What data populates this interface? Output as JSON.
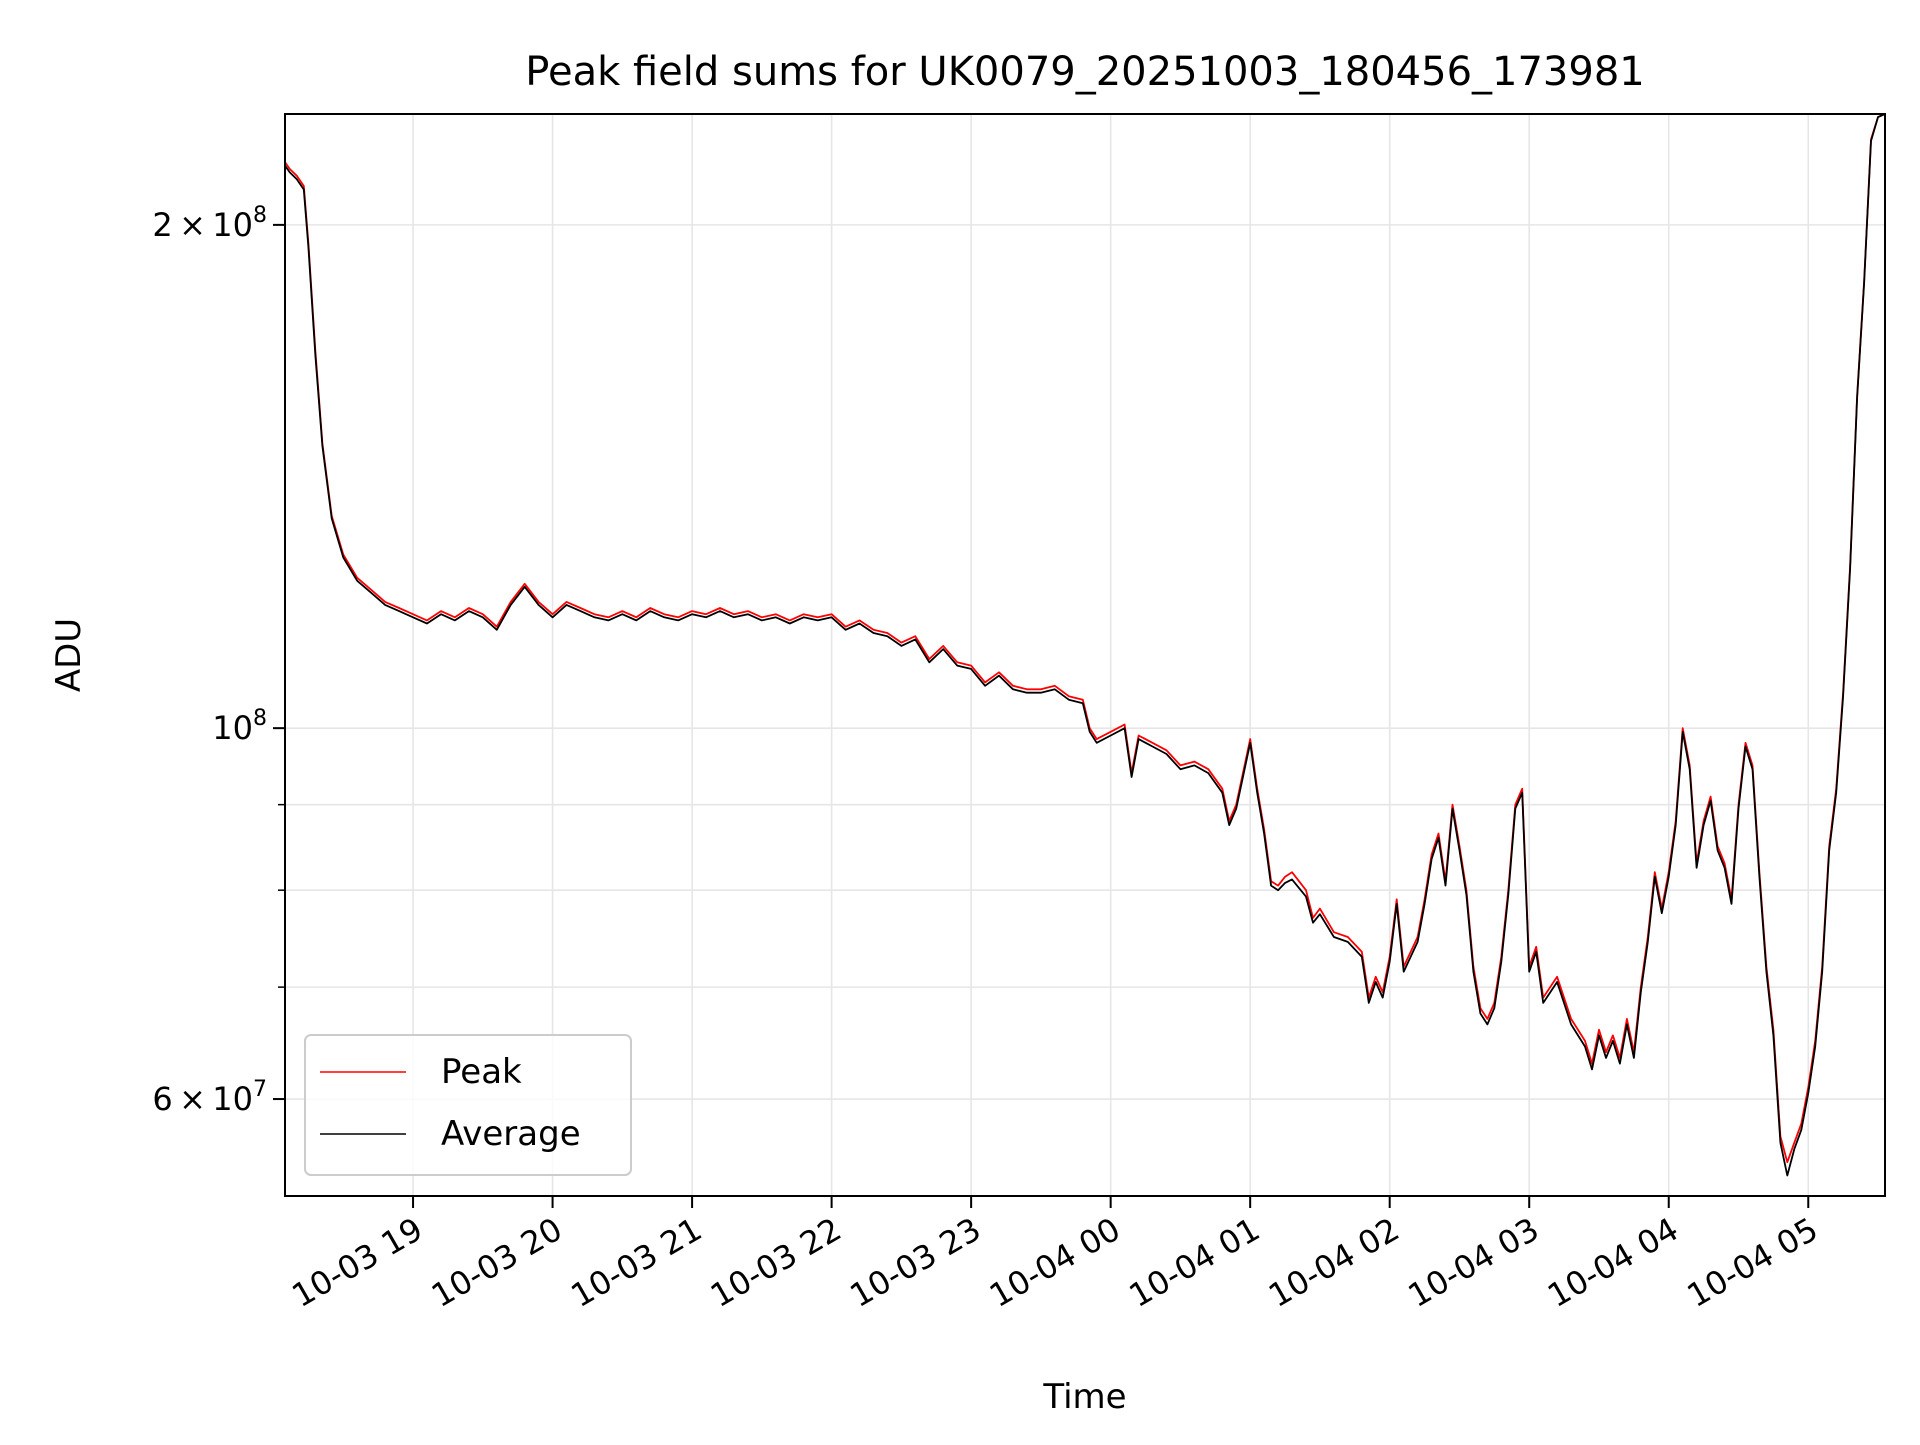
{
  "chart_data": {
    "type": "line",
    "title": "Peak field sums for UK0079_20251003_180456_173981",
    "xlabel": "Time",
    "ylabel": "ADU",
    "y_scale": "log",
    "ylim": [
      52500000,
      233000000
    ],
    "xlim": [
      "2025-10-03 18:04:56",
      "2025-10-04 05:33:00"
    ],
    "grid": true,
    "legend_position": "lower-left",
    "x_ticks": [
      {
        "t": "2025-10-03 19:00",
        "label": "10-03 19"
      },
      {
        "t": "2025-10-03 20:00",
        "label": "10-03 20"
      },
      {
        "t": "2025-10-03 21:00",
        "label": "10-03 21"
      },
      {
        "t": "2025-10-03 22:00",
        "label": "10-03 22"
      },
      {
        "t": "2025-10-03 23:00",
        "label": "10-03 23"
      },
      {
        "t": "2025-10-04 00:00",
        "label": "10-04 00"
      },
      {
        "t": "2025-10-04 01:00",
        "label": "10-04 01"
      },
      {
        "t": "2025-10-04 02:00",
        "label": "10-04 02"
      },
      {
        "t": "2025-10-04 03:00",
        "label": "10-04 03"
      },
      {
        "t": "2025-10-04 04:00",
        "label": "10-04 04"
      },
      {
        "t": "2025-10-04 05:00",
        "label": "10-04 05"
      }
    ],
    "y_ticks_major": [
      {
        "value": 200000000,
        "mantissa": "2",
        "exponent": "8"
      },
      {
        "value": 100000000,
        "mantissa": "",
        "exponent": "8"
      },
      {
        "value": 60000000,
        "mantissa": "6",
        "exponent": "7"
      }
    ],
    "y_ticks_minor": [
      70000000,
      80000000,
      90000000
    ],
    "series": [
      {
        "name": "Peak",
        "color": "#ff0000",
        "x": [
          "2025-10-03 18:04:56",
          "2025-10-03 18:07",
          "2025-10-03 18:10",
          "2025-10-03 18:13",
          "2025-10-03 18:15",
          "2025-10-03 18:18",
          "2025-10-03 18:21",
          "2025-10-03 18:25",
          "2025-10-03 18:30",
          "2025-10-03 18:36",
          "2025-10-03 18:42",
          "2025-10-03 18:48",
          "2025-10-03 18:54",
          "2025-10-03 19:00",
          "2025-10-03 19:06",
          "2025-10-03 19:12",
          "2025-10-03 19:18",
          "2025-10-03 19:24",
          "2025-10-03 19:30",
          "2025-10-03 19:36",
          "2025-10-03 19:42",
          "2025-10-03 19:48",
          "2025-10-03 19:54",
          "2025-10-03 20:00",
          "2025-10-03 20:06",
          "2025-10-03 20:12",
          "2025-10-03 20:18",
          "2025-10-03 20:24",
          "2025-10-03 20:30",
          "2025-10-03 20:36",
          "2025-10-03 20:42",
          "2025-10-03 20:48",
          "2025-10-03 20:54",
          "2025-10-03 21:00",
          "2025-10-03 21:06",
          "2025-10-03 21:12",
          "2025-10-03 21:18",
          "2025-10-03 21:24",
          "2025-10-03 21:30",
          "2025-10-03 21:36",
          "2025-10-03 21:42",
          "2025-10-03 21:48",
          "2025-10-03 21:54",
          "2025-10-03 22:00",
          "2025-10-03 22:06",
          "2025-10-03 22:12",
          "2025-10-03 22:18",
          "2025-10-03 22:24",
          "2025-10-03 22:30",
          "2025-10-03 22:36",
          "2025-10-03 22:42",
          "2025-10-03 22:48",
          "2025-10-03 22:54",
          "2025-10-03 23:00",
          "2025-10-03 23:06",
          "2025-10-03 23:12",
          "2025-10-03 23:18",
          "2025-10-03 23:24",
          "2025-10-03 23:30",
          "2025-10-03 23:36",
          "2025-10-03 23:42",
          "2025-10-03 23:48",
          "2025-10-03 23:51",
          "2025-10-03 23:54",
          "2025-10-04 00:00",
          "2025-10-04 00:06",
          "2025-10-04 00:09",
          "2025-10-04 00:12",
          "2025-10-04 00:18",
          "2025-10-04 00:24",
          "2025-10-04 00:30",
          "2025-10-04 00:36",
          "2025-10-04 00:42",
          "2025-10-04 00:48",
          "2025-10-04 00:51",
          "2025-10-04 00:54",
          "2025-10-04 01:00",
          "2025-10-04 01:03",
          "2025-10-04 01:06",
          "2025-10-04 01:09",
          "2025-10-04 01:12",
          "2025-10-04 01:15",
          "2025-10-04 01:18",
          "2025-10-04 01:24",
          "2025-10-04 01:27",
          "2025-10-04 01:30",
          "2025-10-04 01:36",
          "2025-10-04 01:42",
          "2025-10-04 01:48",
          "2025-10-04 01:51",
          "2025-10-04 01:54",
          "2025-10-04 01:57",
          "2025-10-04 02:00",
          "2025-10-04 02:03",
          "2025-10-04 02:06",
          "2025-10-04 02:12",
          "2025-10-04 02:15",
          "2025-10-04 02:18",
          "2025-10-04 02:21",
          "2025-10-04 02:24",
          "2025-10-04 02:27",
          "2025-10-04 02:30",
          "2025-10-04 02:33",
          "2025-10-04 02:36",
          "2025-10-04 02:39",
          "2025-10-04 02:42",
          "2025-10-04 02:45",
          "2025-10-04 02:48",
          "2025-10-04 02:51",
          "2025-10-04 02:54",
          "2025-10-04 02:57",
          "2025-10-04 03:00",
          "2025-10-04 03:03",
          "2025-10-04 03:06",
          "2025-10-04 03:12",
          "2025-10-04 03:18",
          "2025-10-04 03:24",
          "2025-10-04 03:27",
          "2025-10-04 03:30",
          "2025-10-04 03:33",
          "2025-10-04 03:36",
          "2025-10-04 03:39",
          "2025-10-04 03:42",
          "2025-10-04 03:45",
          "2025-10-04 03:48",
          "2025-10-04 03:51",
          "2025-10-04 03:54",
          "2025-10-04 03:57",
          "2025-10-04 04:00",
          "2025-10-04 04:03",
          "2025-10-04 04:06",
          "2025-10-04 04:09",
          "2025-10-04 04:12",
          "2025-10-04 04:15",
          "2025-10-04 04:18",
          "2025-10-04 04:21",
          "2025-10-04 04:24",
          "2025-10-04 04:27",
          "2025-10-04 04:30",
          "2025-10-04 04:33",
          "2025-10-04 04:36",
          "2025-10-04 04:39",
          "2025-10-04 04:42",
          "2025-10-04 04:45",
          "2025-10-04 04:48",
          "2025-10-04 04:51",
          "2025-10-04 04:54",
          "2025-10-04 04:57",
          "2025-10-04 05:00",
          "2025-10-04 05:03",
          "2025-10-04 05:06",
          "2025-10-04 05:09",
          "2025-10-04 05:12",
          "2025-10-04 05:15",
          "2025-10-04 05:18",
          "2025-10-04 05:21",
          "2025-10-04 05:24",
          "2025-10-04 05:27",
          "2025-10-04 05:30",
          "2025-10-04 05:33"
        ],
        "values": [
          218000000,
          216000000,
          214000000,
          211000000,
          195000000,
          168000000,
          148000000,
          134000000,
          127000000,
          123000000,
          121000000,
          119000000,
          118000000,
          117000000,
          116000000,
          117500000,
          116500000,
          118000000,
          117000000,
          115000000,
          119000000,
          122000000,
          119000000,
          117000000,
          119000000,
          118000000,
          117000000,
          116500000,
          117500000,
          116500000,
          118000000,
          117000000,
          116500000,
          117500000,
          117000000,
          118000000,
          117000000,
          117500000,
          116500000,
          117000000,
          116000000,
          117000000,
          116500000,
          117000000,
          115000000,
          116000000,
          114500000,
          114000000,
          112500000,
          113500000,
          110000000,
          112000000,
          109500000,
          109000000,
          106500000,
          108000000,
          106000000,
          105500000,
          105500000,
          106000000,
          104500000,
          104000000,
          100000000,
          98500000,
          99500000,
          100500000,
          94000000,
          99000000,
          98000000,
          97000000,
          95000000,
          95500000,
          94500000,
          92000000,
          88000000,
          90000000,
          98500000,
          92000000,
          87000000,
          81000000,
          80500000,
          81500000,
          82000000,
          80000000,
          77000000,
          78000000,
          75500000,
          75000000,
          73500000,
          69000000,
          71000000,
          69500000,
          73000000,
          79000000,
          72000000,
          75000000,
          79000000,
          84000000,
          86500000,
          81000000,
          90000000,
          85000000,
          80000000,
          72000000,
          68000000,
          67000000,
          68500000,
          73000000,
          80000000,
          90000000,
          92000000,
          72000000,
          74000000,
          69000000,
          71000000,
          67000000,
          65000000,
          63000000,
          66000000,
          64000000,
          65500000,
          63500000,
          67000000,
          64000000,
          70000000,
          75000000,
          82000000,
          78000000,
          82000000,
          88000000,
          100000000,
          95000000,
          83000000,
          88000000,
          91000000,
          85000000,
          83000000,
          79000000,
          90000000,
          98000000,
          95000000,
          82000000,
          72000000,
          66000000,
          57000000,
          55000000,
          56500000,
          58000000,
          61000000,
          65000000,
          72000000,
          85000000,
          92000000,
          105000000,
          125000000,
          158000000,
          185000000,
          225000000,
          232000000,
          233000000
        ]
      },
      {
        "name": "Average",
        "color": "#000000",
        "x": [
          "2025-10-03 18:04:56",
          "2025-10-03 18:07",
          "2025-10-03 18:10",
          "2025-10-03 18:13",
          "2025-10-03 18:15",
          "2025-10-03 18:18",
          "2025-10-03 18:21",
          "2025-10-03 18:25",
          "2025-10-03 18:30",
          "2025-10-03 18:36",
          "2025-10-03 18:42",
          "2025-10-03 18:48",
          "2025-10-03 18:54",
          "2025-10-03 19:00",
          "2025-10-03 19:06",
          "2025-10-03 19:12",
          "2025-10-03 19:18",
          "2025-10-03 19:24",
          "2025-10-03 19:30",
          "2025-10-03 19:36",
          "2025-10-03 19:42",
          "2025-10-03 19:48",
          "2025-10-03 19:54",
          "2025-10-03 20:00",
          "2025-10-03 20:06",
          "2025-10-03 20:12",
          "2025-10-03 20:18",
          "2025-10-03 20:24",
          "2025-10-03 20:30",
          "2025-10-03 20:36",
          "2025-10-03 20:42",
          "2025-10-03 20:48",
          "2025-10-03 20:54",
          "2025-10-03 21:00",
          "2025-10-03 21:06",
          "2025-10-03 21:12",
          "2025-10-03 21:18",
          "2025-10-03 21:24",
          "2025-10-03 21:30",
          "2025-10-03 21:36",
          "2025-10-03 21:42",
          "2025-10-03 21:48",
          "2025-10-03 21:54",
          "2025-10-03 22:00",
          "2025-10-03 22:06",
          "2025-10-03 22:12",
          "2025-10-03 22:18",
          "2025-10-03 22:24",
          "2025-10-03 22:30",
          "2025-10-03 22:36",
          "2025-10-03 22:42",
          "2025-10-03 22:48",
          "2025-10-03 22:54",
          "2025-10-03 23:00",
          "2025-10-03 23:06",
          "2025-10-03 23:12",
          "2025-10-03 23:18",
          "2025-10-03 23:24",
          "2025-10-03 23:30",
          "2025-10-03 23:36",
          "2025-10-03 23:42",
          "2025-10-03 23:48",
          "2025-10-03 23:51",
          "2025-10-03 23:54",
          "2025-10-04 00:00",
          "2025-10-04 00:06",
          "2025-10-04 00:09",
          "2025-10-04 00:12",
          "2025-10-04 00:18",
          "2025-10-04 00:24",
          "2025-10-04 00:30",
          "2025-10-04 00:36",
          "2025-10-04 00:42",
          "2025-10-04 00:48",
          "2025-10-04 00:51",
          "2025-10-04 00:54",
          "2025-10-04 01:00",
          "2025-10-04 01:03",
          "2025-10-04 01:06",
          "2025-10-04 01:09",
          "2025-10-04 01:12",
          "2025-10-04 01:15",
          "2025-10-04 01:18",
          "2025-10-04 01:24",
          "2025-10-04 01:27",
          "2025-10-04 01:30",
          "2025-10-04 01:36",
          "2025-10-04 01:42",
          "2025-10-04 01:48",
          "2025-10-04 01:51",
          "2025-10-04 01:54",
          "2025-10-04 01:57",
          "2025-10-04 02:00",
          "2025-10-04 02:03",
          "2025-10-04 02:06",
          "2025-10-04 02:12",
          "2025-10-04 02:15",
          "2025-10-04 02:18",
          "2025-10-04 02:21",
          "2025-10-04 02:24",
          "2025-10-04 02:27",
          "2025-10-04 02:30",
          "2025-10-04 02:33",
          "2025-10-04 02:36",
          "2025-10-04 02:39",
          "2025-10-04 02:42",
          "2025-10-04 02:45",
          "2025-10-04 02:48",
          "2025-10-04 02:51",
          "2025-10-04 02:54",
          "2025-10-04 02:57",
          "2025-10-04 03:00",
          "2025-10-04 03:03",
          "2025-10-04 03:06",
          "2025-10-04 03:12",
          "2025-10-04 03:18",
          "2025-10-04 03:24",
          "2025-10-04 03:27",
          "2025-10-04 03:30",
          "2025-10-04 03:33",
          "2025-10-04 03:36",
          "2025-10-04 03:39",
          "2025-10-04 03:42",
          "2025-10-04 03:45",
          "2025-10-04 03:48",
          "2025-10-04 03:51",
          "2025-10-04 03:54",
          "2025-10-04 03:57",
          "2025-10-04 04:00",
          "2025-10-04 04:03",
          "2025-10-04 04:06",
          "2025-10-04 04:09",
          "2025-10-04 04:12",
          "2025-10-04 04:15",
          "2025-10-04 04:18",
          "2025-10-04 04:21",
          "2025-10-04 04:24",
          "2025-10-04 04:27",
          "2025-10-04 04:30",
          "2025-10-04 04:33",
          "2025-10-04 04:36",
          "2025-10-04 04:39",
          "2025-10-04 04:42",
          "2025-10-04 04:45",
          "2025-10-04 04:48",
          "2025-10-04 04:51",
          "2025-10-04 04:54",
          "2025-10-04 04:57",
          "2025-10-04 05:00",
          "2025-10-04 05:03",
          "2025-10-04 05:06",
          "2025-10-04 05:09",
          "2025-10-04 05:12",
          "2025-10-04 05:15",
          "2025-10-04 05:18",
          "2025-10-04 05:21",
          "2025-10-04 05:24",
          "2025-10-04 05:27",
          "2025-10-04 05:30",
          "2025-10-04 05:33"
        ],
        "values": [
          217000000,
          215000000,
          213000000,
          210000000,
          194000000,
          167000000,
          147500000,
          133500000,
          126500000,
          122500000,
          120500000,
          118500000,
          117500000,
          116500000,
          115500000,
          117000000,
          116000000,
          117500000,
          116500000,
          114500000,
          118500000,
          121500000,
          118500000,
          116500000,
          118500000,
          117500000,
          116500000,
          116000000,
          117000000,
          116000000,
          117500000,
          116500000,
          116000000,
          117000000,
          116500000,
          117500000,
          116500000,
          117000000,
          116000000,
          116500000,
          115500000,
          116500000,
          116000000,
          116500000,
          114500000,
          115500000,
          114000000,
          113500000,
          112000000,
          113000000,
          109500000,
          111500000,
          109000000,
          108500000,
          106000000,
          107500000,
          105500000,
          105000000,
          105000000,
          105500000,
          104000000,
          103500000,
          99500000,
          98000000,
          99000000,
          100000000,
          93500000,
          98500000,
          97500000,
          96500000,
          94500000,
          95000000,
          94000000,
          91500000,
          87500000,
          89500000,
          98000000,
          91500000,
          86500000,
          80500000,
          80000000,
          80800000,
          81200000,
          79300000,
          76500000,
          77400000,
          75000000,
          74500000,
          73000000,
          68500000,
          70500000,
          69000000,
          72500000,
          78500000,
          71500000,
          74500000,
          78500000,
          83500000,
          86000000,
          80500000,
          89500000,
          84500000,
          79500000,
          71500000,
          67500000,
          66500000,
          68000000,
          72500000,
          79500000,
          89500000,
          91500000,
          71500000,
          73500000,
          68500000,
          70500000,
          66500000,
          64500000,
          62500000,
          65500000,
          63500000,
          65000000,
          63000000,
          66500000,
          63500000,
          69500000,
          74500000,
          81500000,
          77500000,
          81500000,
          87500000,
          99500000,
          94500000,
          82500000,
          87500000,
          90500000,
          84500000,
          82500000,
          78500000,
          89500000,
          97500000,
          94500000,
          81500000,
          71500000,
          65500000,
          56500000,
          54000000,
          56000000,
          57500000,
          60500000,
          64500000,
          71500000,
          84500000,
          91500000,
          104500000,
          124500000,
          157500000,
          184500000,
          224500000,
          232000000,
          233000000
        ]
      }
    ]
  }
}
